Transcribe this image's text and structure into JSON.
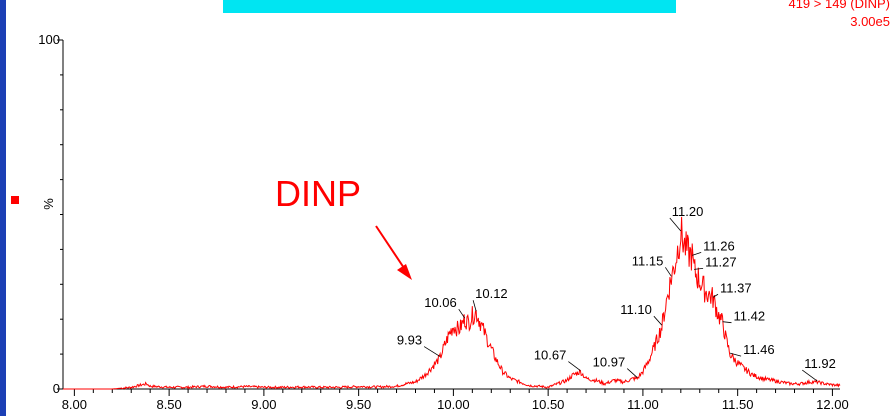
{
  "header": {
    "transition": "419 > 149 (DINP)",
    "intensity": "3.00e5"
  },
  "colors": {
    "trace": "#ff0000",
    "frame": "#1c3fb5",
    "banner": "#00e5f2",
    "annotation": "#ff0000"
  },
  "annotation": {
    "label": "DINP",
    "target_rt": 10.06
  },
  "chart_data": {
    "type": "line",
    "title": "",
    "xlabel": "",
    "ylabel": "%",
    "xlim": [
      7.94,
      12.04
    ],
    "ylim": [
      0,
      100
    ],
    "x_ticks": [
      "8.00",
      "8.50",
      "9.00",
      "9.50",
      "10.00",
      "10.50",
      "11.00",
      "11.50",
      "12.00"
    ],
    "y_ticks": [
      "0",
      "100"
    ],
    "peak_labels": [
      {
        "rt": "9.93",
        "x": 9.93,
        "y": 9
      },
      {
        "rt": "10.06",
        "x": 10.06,
        "y": 20
      },
      {
        "rt": "10.12",
        "x": 10.12,
        "y": 22
      },
      {
        "rt": "10.67",
        "x": 10.67,
        "y": 5
      },
      {
        "rt": "10.97",
        "x": 10.97,
        "y": 3
      },
      {
        "rt": "11.10",
        "x": 11.1,
        "y": 18
      },
      {
        "rt": "11.15",
        "x": 11.15,
        "y": 32
      },
      {
        "rt": "11.20",
        "x": 11.2,
        "y": 45
      },
      {
        "rt": "11.26",
        "x": 11.26,
        "y": 38
      },
      {
        "rt": "11.27",
        "x": 11.27,
        "y": 34
      },
      {
        "rt": "11.37",
        "x": 11.37,
        "y": 26
      },
      {
        "rt": "11.42",
        "x": 11.42,
        "y": 19
      },
      {
        "rt": "11.46",
        "x": 11.46,
        "y": 10
      },
      {
        "rt": "11.92",
        "x": 11.92,
        "y": 2
      }
    ],
    "series": [
      {
        "x": [
          7.94,
          8.1,
          8.2,
          8.3,
          8.38,
          8.4,
          8.5,
          8.6,
          8.7,
          8.8,
          8.9,
          9.0,
          9.1,
          9.2,
          9.3,
          9.4,
          9.5,
          9.6,
          9.7,
          9.75,
          9.8,
          9.85,
          9.9,
          9.93,
          9.95,
          9.98,
          10.0,
          10.03,
          10.06,
          10.08,
          10.1,
          10.12,
          10.15,
          10.18,
          10.22,
          10.26,
          10.3,
          10.35,
          10.4,
          10.45,
          10.5,
          10.55,
          10.6,
          10.63,
          10.67,
          10.7,
          10.75,
          10.8,
          10.85,
          10.9,
          10.95,
          10.97,
          11.0,
          11.03,
          11.06,
          11.08,
          11.1,
          11.12,
          11.15,
          11.17,
          11.2,
          11.22,
          11.24,
          11.26,
          11.27,
          11.3,
          11.33,
          11.37,
          11.4,
          11.42,
          11.44,
          11.46,
          11.49,
          11.53,
          11.58,
          11.63,
          11.68,
          11.73,
          11.78,
          11.83,
          11.88,
          11.92,
          11.96,
          12.0,
          12.04
        ],
        "y": [
          0,
          0,
          0,
          0.5,
          1.5,
          0.8,
          0.5,
          0.5,
          0.8,
          0.5,
          0.7,
          0.5,
          0.5,
          0.6,
          0.5,
          0.5,
          0.7,
          0.6,
          0.8,
          1.5,
          2,
          4,
          7,
          9,
          12,
          16,
          18,
          17,
          20,
          19,
          21,
          22,
          18,
          14,
          9,
          5,
          3,
          2,
          1,
          0.8,
          0.5,
          1.5,
          2.5,
          4,
          5,
          3,
          2.5,
          1.5,
          2.5,
          2,
          3,
          3,
          5,
          8,
          12,
          15,
          18,
          24,
          32,
          36,
          45,
          41,
          39,
          38,
          34,
          31,
          28,
          26,
          21,
          19,
          14,
          10,
          8,
          6,
          4,
          3,
          2.5,
          2,
          1.5,
          1.5,
          2,
          2,
          1.5,
          1.2,
          1
        ]
      }
    ]
  }
}
